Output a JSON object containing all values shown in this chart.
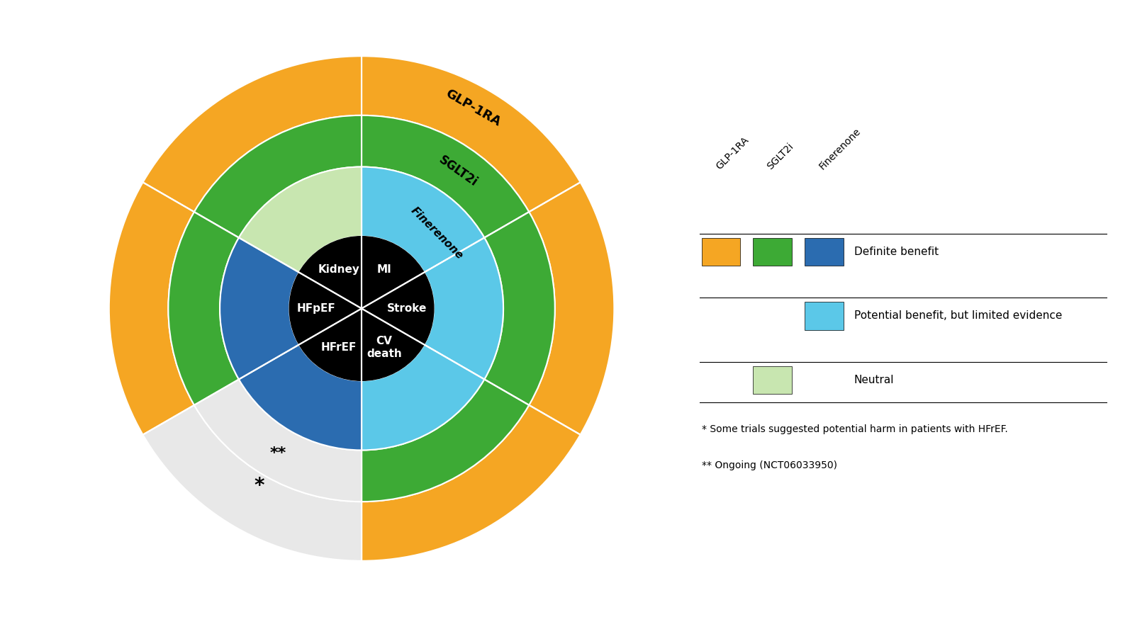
{
  "colors": {
    "orange": "#F5A623",
    "green": "#3DAA35",
    "dark_blue": "#2B6CB0",
    "light_blue": "#5BC8E8",
    "light_green": "#C8E6B0",
    "white_gray": "#E8E8E8",
    "black": "#000000",
    "white": "#FFFFFF"
  },
  "sectors": [
    "Kidney",
    "MI",
    "Stroke",
    "CV death",
    "HFrEF",
    "HFpEF"
  ],
  "sector_angles": [
    90,
    30,
    330,
    270,
    210,
    150
  ],
  "legend_items": [
    {
      "label": "Definite benefit",
      "colors": [
        "#F5A623",
        "#3DAA35",
        "#2B6CB0"
      ]
    },
    {
      "label": "Potential benefit, but limited evidence",
      "colors": [
        null,
        null,
        "#5BC8E8"
      ]
    },
    {
      "label": "Neutral",
      "colors": [
        null,
        "#C8E6B0",
        null
      ]
    }
  ],
  "footnotes": [
    "* Some trials suggested potential harm in patients with HFrEF.",
    "** Ongoing (NCT06033950)"
  ],
  "ring_labels": [
    "GLP-1RA",
    "SGLT2i",
    "Finerenone"
  ],
  "inner_labels": [
    "Kidney",
    "MI",
    "Stroke",
    "CV\ndeath",
    "HFrEF",
    "HFpEF"
  ]
}
